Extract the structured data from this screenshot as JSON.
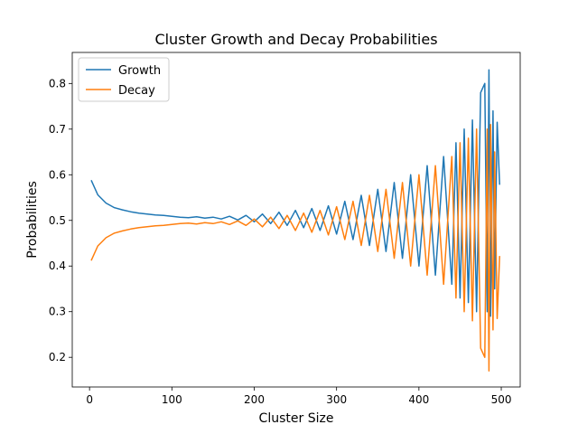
{
  "chart_data": {
    "type": "line",
    "title": "Cluster Growth and Decay Probabilities",
    "xlabel": "Cluster Size",
    "ylabel": "Probabilities",
    "xlim": [
      -21,
      523
    ],
    "ylim": [
      0.135,
      0.868
    ],
    "x_ticks": [
      0,
      100,
      200,
      300,
      400,
      500
    ],
    "y_ticks": [
      0.2,
      0.3,
      0.4,
      0.5,
      0.6,
      0.7,
      0.8
    ],
    "grid": false,
    "legend_position": "top-left",
    "x": [
      2,
      10,
      20,
      30,
      40,
      50,
      60,
      70,
      80,
      90,
      100,
      110,
      120,
      130,
      140,
      150,
      160,
      170,
      180,
      190,
      200,
      210,
      220,
      230,
      240,
      250,
      260,
      270,
      280,
      290,
      300,
      310,
      320,
      330,
      340,
      350,
      360,
      370,
      380,
      390,
      400,
      410,
      420,
      430,
      440,
      445,
      450,
      455,
      460,
      465,
      470,
      475,
      480,
      483,
      485,
      487,
      490,
      492,
      495,
      498
    ],
    "series": [
      {
        "name": "Growth",
        "color": "#1f77b4",
        "values": [
          0.588,
          0.556,
          0.538,
          0.528,
          0.523,
          0.519,
          0.516,
          0.514,
          0.512,
          0.511,
          0.509,
          0.507,
          0.506,
          0.508,
          0.505,
          0.507,
          0.503,
          0.509,
          0.501,
          0.511,
          0.497,
          0.514,
          0.493,
          0.518,
          0.489,
          0.522,
          0.484,
          0.526,
          0.478,
          0.532,
          0.47,
          0.542,
          0.458,
          0.555,
          0.445,
          0.568,
          0.432,
          0.583,
          0.417,
          0.6,
          0.4,
          0.62,
          0.38,
          0.64,
          0.36,
          0.67,
          0.33,
          0.7,
          0.32,
          0.72,
          0.3,
          0.78,
          0.8,
          0.3,
          0.83,
          0.29,
          0.74,
          0.35,
          0.715,
          0.578
        ]
      },
      {
        "name": "Decay",
        "color": "#ff7f0e",
        "values": [
          0.412,
          0.444,
          0.462,
          0.472,
          0.477,
          0.481,
          0.484,
          0.486,
          0.488,
          0.489,
          0.491,
          0.493,
          0.494,
          0.492,
          0.495,
          0.493,
          0.497,
          0.491,
          0.499,
          0.489,
          0.503,
          0.486,
          0.507,
          0.482,
          0.511,
          0.478,
          0.516,
          0.474,
          0.522,
          0.468,
          0.53,
          0.458,
          0.542,
          0.445,
          0.555,
          0.432,
          0.568,
          0.417,
          0.583,
          0.4,
          0.6,
          0.38,
          0.62,
          0.36,
          0.64,
          0.33,
          0.67,
          0.3,
          0.68,
          0.28,
          0.7,
          0.22,
          0.2,
          0.7,
          0.17,
          0.71,
          0.26,
          0.65,
          0.285,
          0.422
        ]
      }
    ]
  }
}
